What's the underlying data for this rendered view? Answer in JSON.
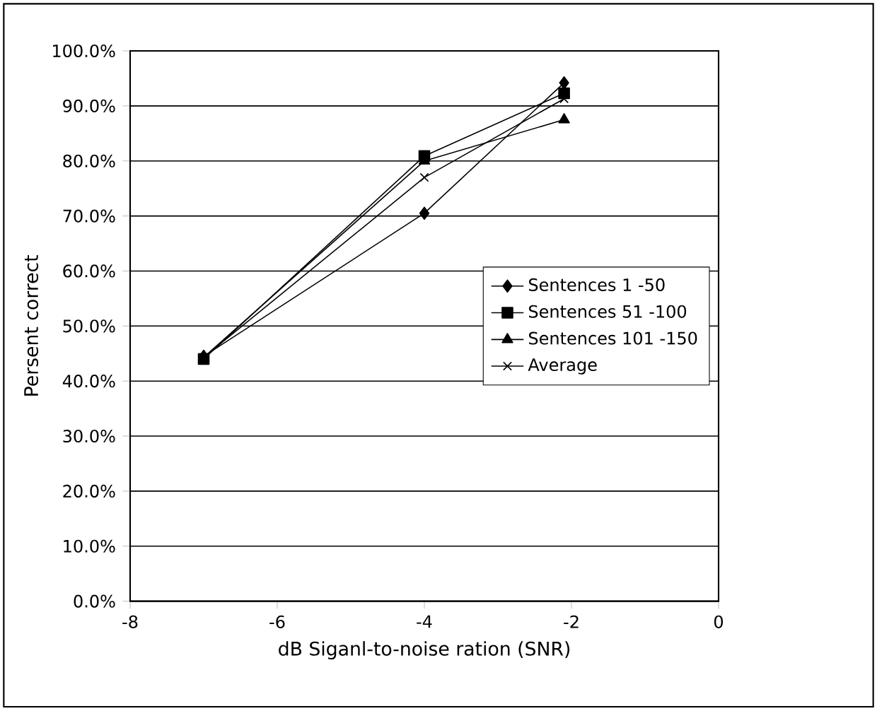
{
  "chart_data": {
    "type": "line",
    "xlabel": "dB Siganl-to-noise ration (SNR)",
    "ylabel": "Persent correct",
    "x": [
      -7,
      -4,
      -2.1
    ],
    "series": [
      {
        "name": "Sentences 1 -50",
        "color": "#000000",
        "marker": "diamond",
        "values": [
          44.5,
          70.5,
          94.2
        ]
      },
      {
        "name": "Sentences 51 -100",
        "color": "#000000",
        "marker": "square",
        "values": [
          44.0,
          80.9,
          92.3
        ]
      },
      {
        "name": "Sentences 101 -150",
        "color": "#000000",
        "marker": "triangle",
        "values": [
          44.3,
          80.0,
          87.5
        ]
      },
      {
        "name": "Average",
        "color": "#000000",
        "marker": "cross",
        "values": [
          44.3,
          77.0,
          91.3
        ]
      }
    ],
    "xlim": [
      -8,
      0
    ],
    "xticks": [
      -8,
      -6,
      -4,
      -2,
      0
    ],
    "ylim": [
      0,
      100
    ],
    "yticks": [
      {
        "value": 0,
        "label": "0.0%"
      },
      {
        "value": 10,
        "label": "10.0%"
      },
      {
        "value": 20,
        "label": "20.0%"
      },
      {
        "value": 30,
        "label": "30.0%"
      },
      {
        "value": 40,
        "label": "40.0%"
      },
      {
        "value": 50,
        "label": "50.0%"
      },
      {
        "value": 60,
        "label": "60.0%"
      },
      {
        "value": 70,
        "label": "70.0%"
      },
      {
        "value": 80,
        "label": "80.0%"
      },
      {
        "value": 90,
        "label": "90.0%"
      },
      {
        "value": 100,
        "label": "100.0%"
      }
    ],
    "grid": "y",
    "legend": "right",
    "line_style": "solid"
  }
}
